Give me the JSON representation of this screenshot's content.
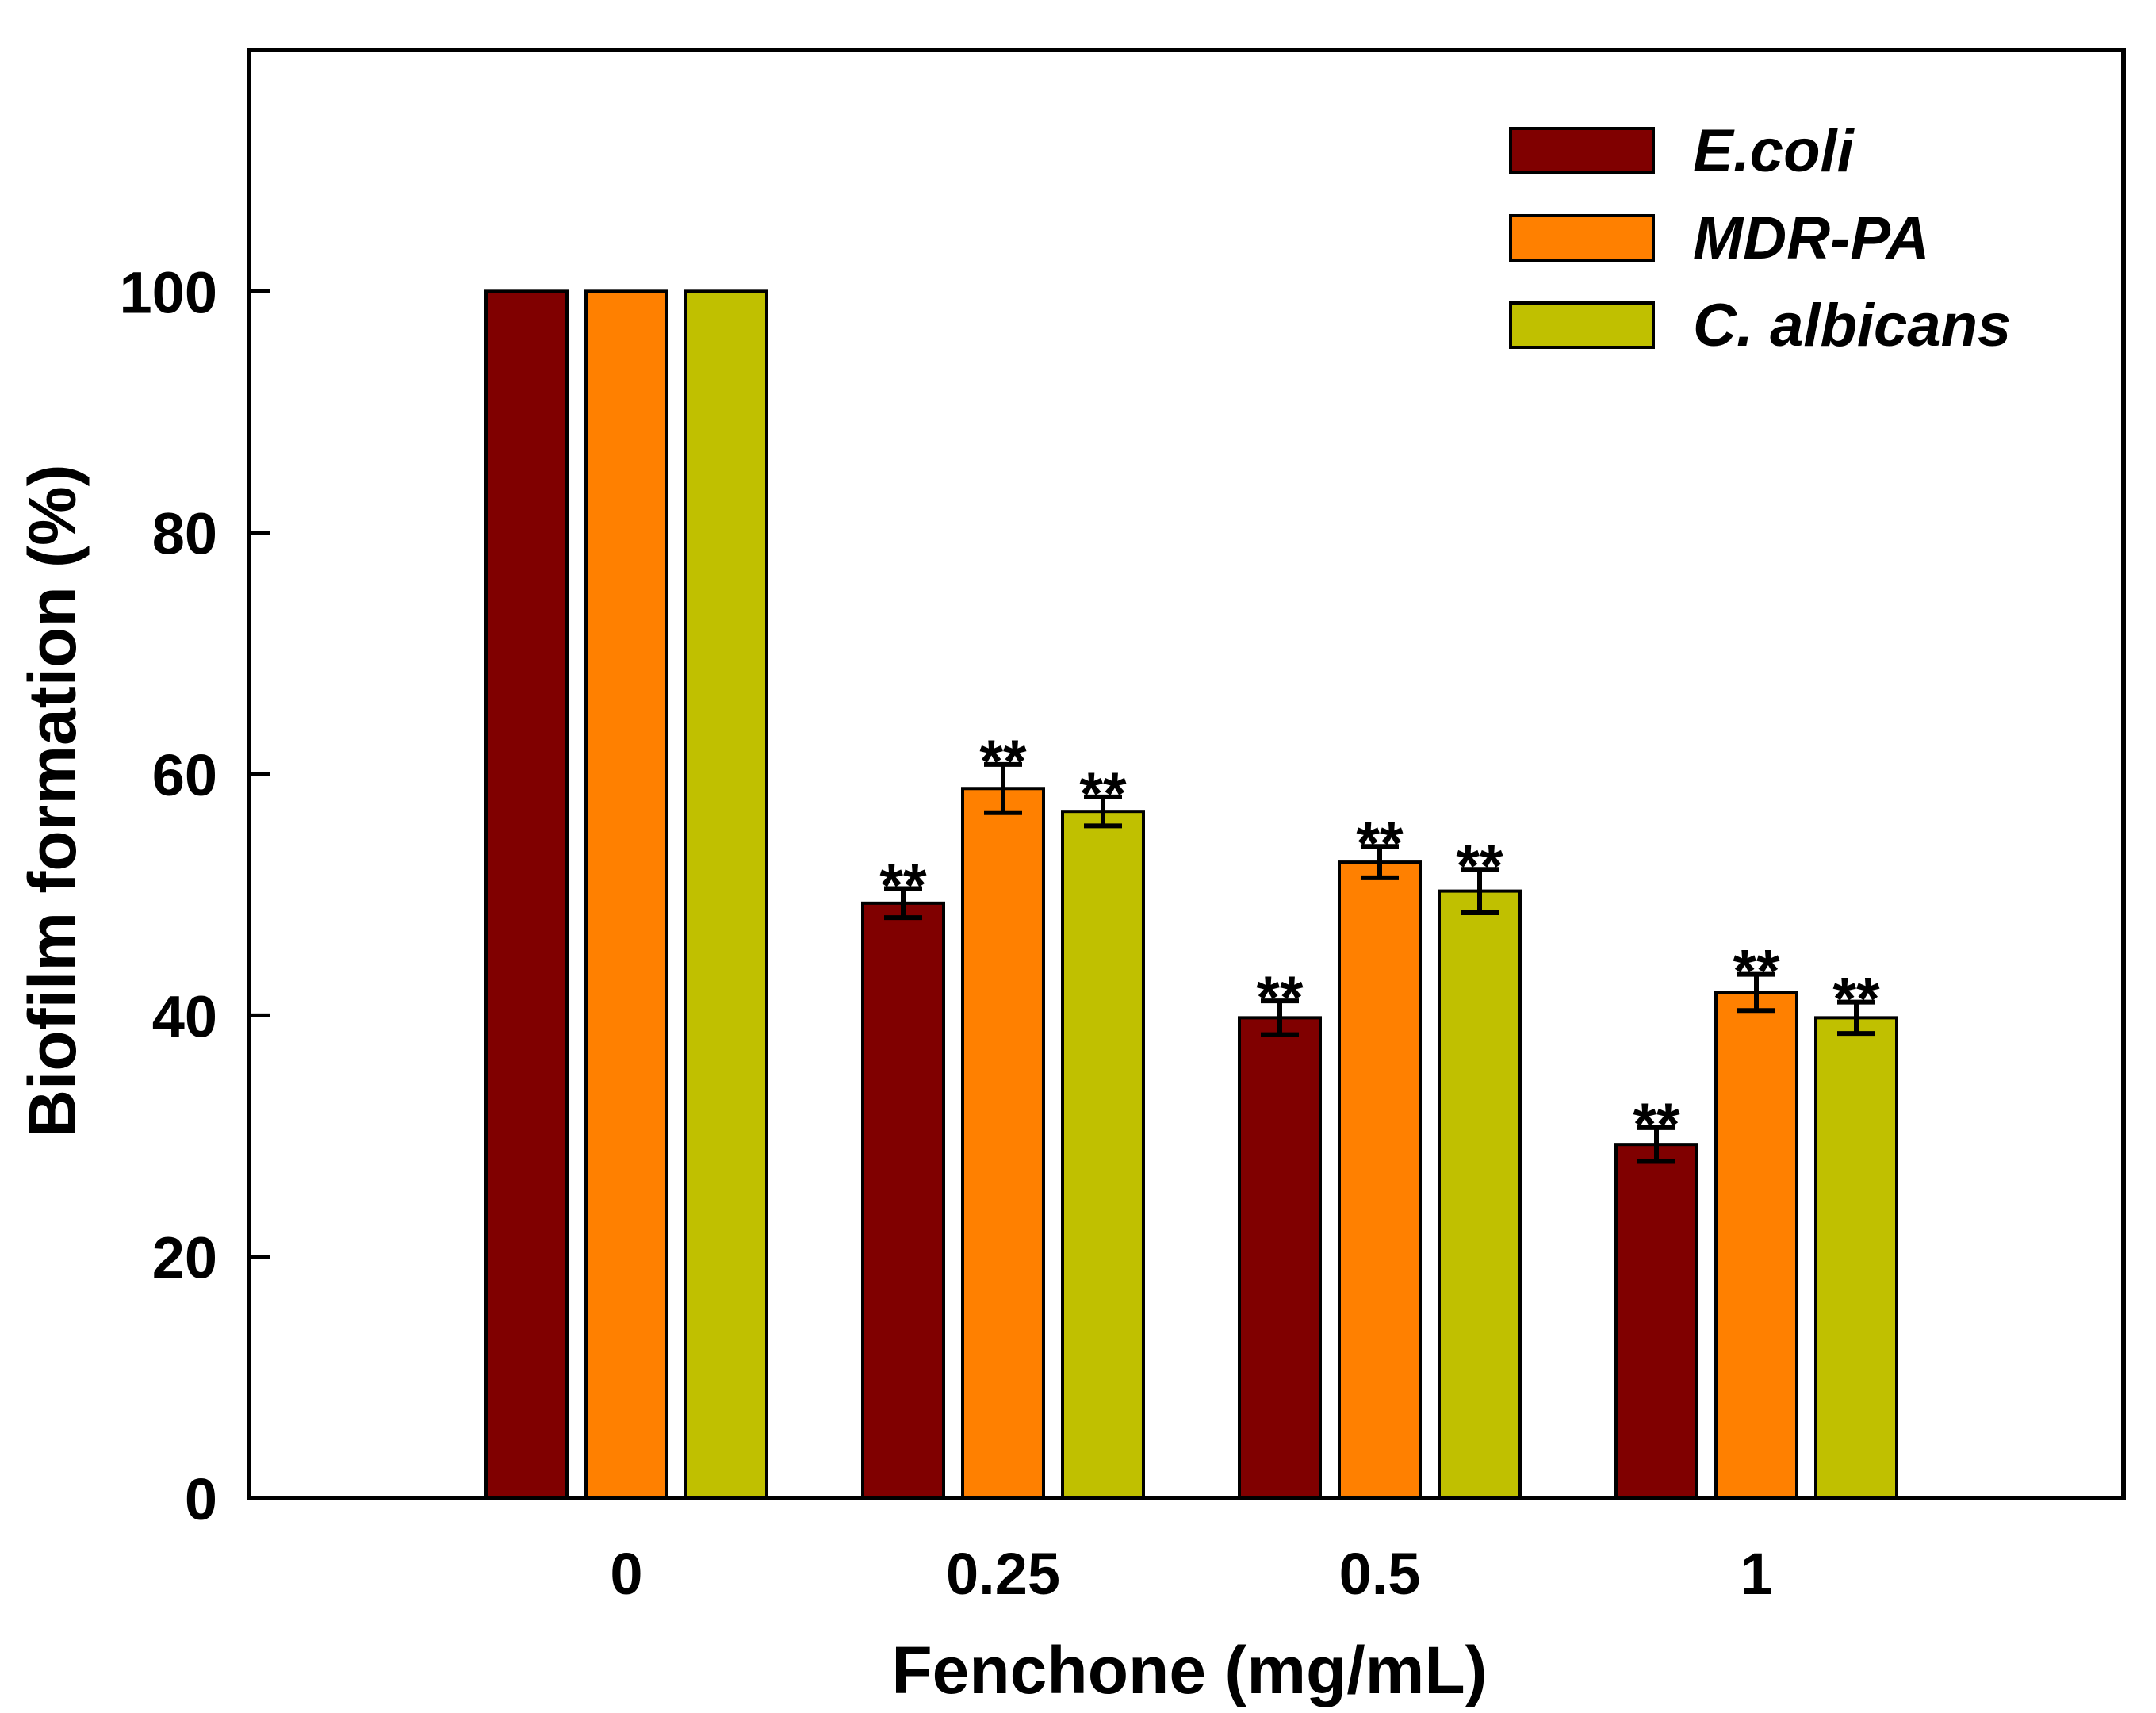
{
  "chart_data": {
    "type": "bar",
    "title": "",
    "xlabel": "Fenchone (mg/mL)",
    "ylabel": "Biofilm formation (%)",
    "ylim": [
      0,
      120
    ],
    "yticks": [
      0,
      20,
      40,
      60,
      80,
      100
    ],
    "categories": [
      "0",
      "0.25",
      "0.5",
      "1"
    ],
    "series": [
      {
        "name": "E.coli",
        "color": "#800000",
        "values": [
          100,
          49.3,
          39.8,
          29.3
        ],
        "errors": [
          0,
          1.2,
          1.4,
          1.4
        ],
        "annotations": [
          "",
          "**",
          "**",
          "**"
        ]
      },
      {
        "name": "MDR-PA",
        "color": "#ff8000",
        "values": [
          100,
          58.8,
          52.7,
          41.9
        ],
        "errors": [
          0,
          2.0,
          1.3,
          1.5
        ],
        "annotations": [
          "",
          "**",
          "**",
          "**"
        ]
      },
      {
        "name": "C. albicans",
        "color": "#c0c000",
        "values": [
          100,
          56.9,
          50.3,
          39.8
        ],
        "errors": [
          0,
          1.2,
          1.8,
          1.3
        ],
        "annotations": [
          "",
          "**",
          "**",
          "**"
        ]
      }
    ],
    "legend_position": "top-right"
  }
}
